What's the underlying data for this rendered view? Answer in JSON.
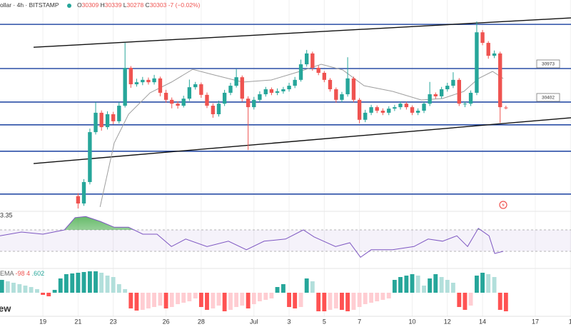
{
  "header": {
    "title": "ollar · 4h · BITSTAMP",
    "ohlc_prefixes": [
      "O",
      "H",
      "L",
      "C"
    ],
    "change": -7,
    "change_pct": "(−0.02%)"
  },
  "watermark": "ew",
  "chart_data": [
    {
      "type": "candlestick",
      "x": [
        21,
        21.33,
        21.67,
        22,
        22.33,
        22.67,
        23,
        23.33,
        23.67,
        24,
        24.33,
        24.67,
        25,
        25.33,
        25.67,
        26,
        26.33,
        26.67,
        27,
        27.33,
        27.67,
        28,
        28.33,
        28.67,
        29,
        29.33,
        29.67,
        30,
        30.33,
        30.67,
        31,
        31.33,
        31.67,
        32,
        32.33,
        32.67,
        33,
        33.33,
        33.67,
        34,
        34.33,
        34.67,
        35,
        35.33,
        35.67,
        36,
        36.33,
        36.67,
        37,
        37.33,
        37.67,
        38,
        38.33,
        38.67,
        39,
        39.33,
        39.67,
        40,
        40.33,
        40.67,
        41,
        41.33,
        41.67,
        42,
        42.33,
        42.67,
        43,
        43.33,
        43.67,
        44,
        44.33,
        44.67,
        45,
        45.33
      ],
      "open": [
        28800,
        28675,
        29040,
        29890,
        30220,
        29975,
        30195,
        30075,
        30340,
        30985,
        30705,
        30740,
        30780,
        30740,
        30805,
        30560,
        30440,
        30375,
        30340,
        30460,
        30655,
        30705,
        30525,
        30340,
        30195,
        30375,
        30560,
        30680,
        30825,
        30460,
        30315,
        30440,
        30535,
        30620,
        30560,
        30585,
        30620,
        30680,
        30780,
        31045,
        31230,
        30985,
        30900,
        30780,
        30620,
        30440,
        30535,
        30805,
        30440,
        30100,
        30220,
        30315,
        30255,
        30220,
        30290,
        30315,
        30375,
        30315,
        30220,
        30255,
        30375,
        30535,
        30500,
        30620,
        30680,
        30780,
        30375,
        30375,
        30560,
        31590,
        31410,
        31190,
        31230,
        30309
      ],
      "high": [
        28850,
        29090,
        29950,
        30400,
        30260,
        30245,
        30235,
        30400,
        31410,
        31015,
        30800,
        30830,
        30820,
        30865,
        30835,
        30610,
        30480,
        30415,
        30510,
        30785,
        30745,
        30735,
        30565,
        30380,
        30425,
        30610,
        30730,
        30965,
        30855,
        30500,
        30490,
        30585,
        30660,
        30650,
        30635,
        30660,
        30730,
        30830,
        31125,
        31290,
        31260,
        31025,
        30930,
        30810,
        30650,
        30575,
        31165,
        30835,
        30470,
        30270,
        30355,
        30345,
        30295,
        30330,
        30355,
        30415,
        30405,
        30345,
        30295,
        30415,
        30745,
        30565,
        30660,
        30730,
        30910,
        30810,
        30415,
        30600,
        31775,
        31630,
        31440,
        31280,
        31260,
        30339
      ],
      "low": [
        28590,
        28635,
        29000,
        29850,
        29915,
        29935,
        30025,
        30035,
        30310,
        30645,
        30665,
        30690,
        30700,
        30700,
        30500,
        30390,
        30295,
        30290,
        30310,
        30420,
        30615,
        30475,
        30300,
        30135,
        30155,
        30335,
        30520,
        30650,
        30410,
        29585,
        30275,
        30400,
        30495,
        30520,
        30520,
        30545,
        30580,
        30640,
        30750,
        31005,
        30935,
        30860,
        30740,
        30580,
        30390,
        30400,
        30495,
        30400,
        30040,
        30060,
        30180,
        30215,
        30180,
        30180,
        30250,
        30275,
        30275,
        30180,
        30180,
        30215,
        30335,
        30460,
        30460,
        30580,
        30640,
        30335,
        30315,
        30335,
        30520,
        31370,
        31140,
        31150,
        30050,
        30278
      ],
      "close": [
        28675,
        29040,
        29890,
        30220,
        29975,
        30195,
        30075,
        30340,
        30985,
        30705,
        30740,
        30780,
        30740,
        30805,
        30560,
        30440,
        30375,
        30340,
        30460,
        30655,
        30705,
        30525,
        30340,
        30195,
        30375,
        30560,
        30680,
        30825,
        30460,
        30315,
        30440,
        30535,
        30620,
        30560,
        30585,
        30620,
        30680,
        30780,
        31045,
        31230,
        30985,
        30900,
        30780,
        30620,
        30440,
        30535,
        30805,
        30440,
        30100,
        30220,
        30315,
        30255,
        30220,
        30290,
        30315,
        30375,
        30315,
        30220,
        30255,
        30375,
        30535,
        30500,
        30620,
        30680,
        30780,
        30375,
        30375,
        30560,
        31590,
        31410,
        31190,
        31230,
        30315,
        30303
      ],
      "up_color": "#26a69a",
      "down_color": "#ef5350",
      "xlim": [
        16.56,
        49.03
      ],
      "ylim": [
        28590,
        32140
      ],
      "xticks": [
        19,
        21,
        23,
        26,
        28,
        {
          "value": 31,
          "label": "Jul"
        },
        {
          "value": 33,
          "label": "3"
        },
        {
          "value": 35,
          "label": "5"
        },
        {
          "value": 37,
          "label": "7"
        },
        {
          "value": 40,
          "label": "10"
        },
        {
          "value": 42,
          "label": "12"
        },
        {
          "value": 44,
          "label": "14"
        },
        {
          "value": 47,
          "label": "17"
        },
        {
          "value": 49,
          "label": "1"
        }
      ],
      "grid": true,
      "levels": [
        31725,
        30973,
        30402,
        30015,
        29565,
        28835
      ],
      "level_color": "#2a4ea6",
      "level_labels": [
        30973,
        30402
      ],
      "trendlines": [
        {
          "x": [
            18.47,
            49.03
          ],
          "values": [
            31335,
            31835
          ]
        },
        {
          "x": [
            18.47,
            49.03
          ],
          "values": [
            29355,
            30135
          ]
        }
      ],
      "trendline_color": "#111111",
      "ma": {
        "x": [
          22.25,
          23.06,
          23.87,
          25.09,
          26.31,
          27.52,
          28.74,
          30.36,
          31.99,
          33.61,
          34.83,
          36.05,
          37.26,
          38.89,
          40.51,
          41.73,
          42.94,
          43.76,
          44.57,
          45.18
        ],
        "values": [
          28616,
          29709,
          30195,
          30559,
          30742,
          30960,
          30863,
          30742,
          30778,
          30924,
          31046,
          30948,
          30681,
          30584,
          30438,
          30462,
          30584,
          30803,
          30924,
          30803
        ],
        "color": "#9e9e9e"
      }
    },
    {
      "type": "line",
      "label": "3.35",
      "x": [
        16.56,
        17.78,
        19,
        20.22,
        20.83,
        21.44,
        22.25,
        23.06,
        23.87,
        24.68,
        25.49,
        26.31,
        27.12,
        28.33,
        29.55,
        30.57,
        31.58,
        32.8,
        33.81,
        34.42,
        35.64,
        36.45,
        37.06,
        37.67,
        38.89,
        40.1,
        40.91,
        41.73,
        42.54,
        43.15,
        43.76,
        44.37,
        44.69,
        45.18
      ],
      "values": [
        59,
        66,
        62,
        70,
        93,
        95,
        86,
        75,
        75,
        62,
        62,
        39,
        53,
        39,
        49,
        33,
        49,
        53,
        70,
        57,
        39,
        46,
        19,
        33,
        33,
        39,
        53,
        49,
        59,
        39,
        73,
        59,
        26,
        30
      ],
      "color": "#7e57c2",
      "xlim": [
        16.56,
        49.03
      ],
      "ylim": [
        0,
        100
      ],
      "bands": [
        30,
        70
      ],
      "band_color": "#7e57c2",
      "overbought_color": "#4caf50"
    },
    {
      "type": "bar",
      "legend_text": [
        "EMA",
        "-98",
        "4",
        ".602"
      ],
      "x": [
        16.67,
        17,
        17.33,
        17.67,
        18,
        18.33,
        18.67,
        19,
        19.33,
        19.67,
        20,
        20.33,
        20.67,
        21,
        21.33,
        21.67,
        22,
        22.33,
        22.67,
        23,
        23.33,
        23.67,
        24,
        24.33,
        24.67,
        25,
        25.33,
        25.67,
        26,
        26.33,
        26.67,
        27,
        27.33,
        27.67,
        28,
        28.33,
        28.67,
        29,
        29.33,
        29.67,
        30,
        30.33,
        30.67,
        31,
        31.33,
        31.67,
        32,
        32.33,
        32.67,
        33,
        33.33,
        33.67,
        34,
        34.33,
        34.67,
        35,
        35.33,
        35.67,
        36,
        36.33,
        36.67,
        37,
        37.33,
        37.67,
        38,
        38.33,
        38.67,
        39,
        39.33,
        39.67,
        40,
        40.33,
        40.67,
        41,
        41.33,
        41.67,
        42,
        42.33,
        42.67,
        43,
        43.33,
        43.67,
        44,
        44.33,
        44.67,
        45,
        45.33
      ],
      "values": [
        18,
        16,
        14,
        12,
        10,
        8,
        5,
        -3,
        -5,
        4,
        20,
        26,
        27,
        28,
        29,
        30,
        30,
        28,
        24,
        22,
        12,
        5,
        -22,
        -25,
        -24,
        -22,
        -20,
        -18,
        -22,
        -20,
        -16,
        -14,
        -12,
        -8,
        -20,
        -24,
        -22,
        -18,
        -26,
        -24,
        -20,
        -18,
        -22,
        -16,
        -12,
        -10,
        -8,
        8,
        12,
        -20,
        -22,
        -20,
        20,
        16,
        -26,
        -26,
        -24,
        -22,
        -24,
        -26,
        -24,
        -20,
        -16,
        -14,
        -12,
        -10,
        -8,
        18,
        22,
        24,
        26,
        24,
        10,
        20,
        26,
        22,
        18,
        14,
        -20,
        -24,
        -18,
        24,
        28,
        26,
        22,
        -24,
        -26
      ],
      "xlim": [
        16.56,
        49.03
      ],
      "ylim": [
        -32,
        32
      ],
      "colors": {
        "up_strong": "#26a69a",
        "up_weak": "#b2dfdb",
        "down_strong": "#ff5252",
        "down_weak": "#ffcdd2"
      }
    }
  ]
}
